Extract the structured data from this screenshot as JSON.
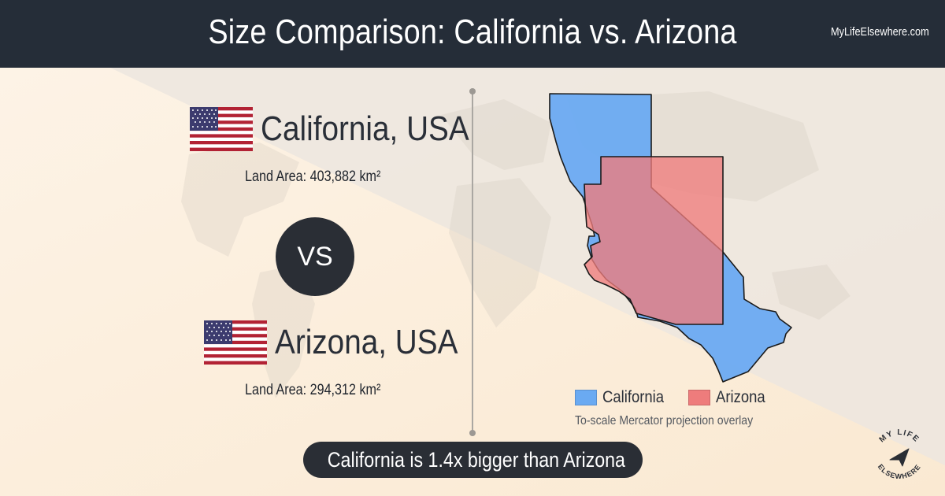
{
  "header": {
    "title": "Size Comparison: California vs. Arizona",
    "site": "MyLifeElsewhere.com"
  },
  "country_a": {
    "name": "California, USA",
    "area_label": "Land Area: 403,882 km²",
    "flag_icon": "us-flag-icon"
  },
  "vs_label": "VS",
  "country_b": {
    "name": "Arizona, USA",
    "area_label": "Land Area: 294,312 km²",
    "flag_icon": "us-flag-icon"
  },
  "legend": {
    "items": [
      {
        "label": "California",
        "color": "#6aaaf2"
      },
      {
        "label": "Arizona",
        "color": "#ee7c7c"
      }
    ],
    "note": "To-scale Mercator projection overlay"
  },
  "result": "California is 1.4x bigger than Arizona",
  "logo": {
    "line1": "MY LIFE",
    "line2": "ELSEWHERE"
  },
  "colors": {
    "header_bg": "#252d38",
    "california": "#6aaaf2",
    "arizona": "#ee7c7c",
    "dark": "#2a2e35"
  }
}
